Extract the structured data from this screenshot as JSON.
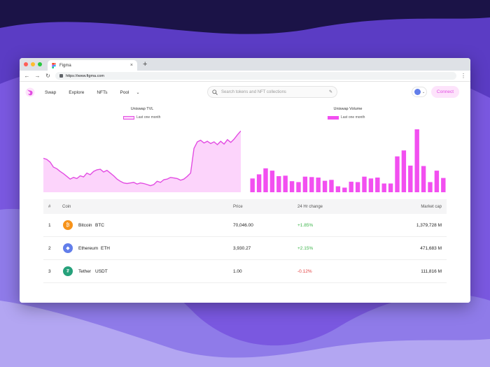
{
  "browser": {
    "tab_title": "Figma",
    "new_tab": "+",
    "close": "×",
    "url": "https://www.figma.com"
  },
  "nav": {
    "links": [
      "Swap",
      "Explore",
      "NFTs",
      "Pool"
    ],
    "search_placeholder": "Search tokens and NFT collections",
    "connect": "Connect"
  },
  "charts": {
    "tvl": {
      "title": "Uniswap TVL",
      "legend": "Last one month"
    },
    "volume": {
      "title": "Uniswap Volume",
      "legend": "Last one month"
    }
  },
  "chart_data": [
    {
      "type": "area",
      "title": "Uniswap TVL",
      "legend": [
        "Last one month"
      ],
      "values": [
        62,
        60,
        55,
        46,
        43,
        38,
        34,
        29,
        24,
        27,
        25,
        30,
        28,
        35,
        32,
        38,
        41,
        42,
        37,
        40,
        35,
        30,
        24,
        20,
        17,
        16,
        17,
        18,
        15,
        17,
        16,
        14,
        12,
        14,
        20,
        18,
        23,
        24,
        27,
        26,
        25,
        22,
        24,
        29,
        35,
        80,
        92,
        95,
        90,
        93,
        89,
        92,
        87,
        93,
        88,
        96,
        91,
        97,
        105,
        112
      ],
      "ylim": [
        0,
        120
      ]
    },
    {
      "type": "bar",
      "title": "Uniswap Volume",
      "legend": [
        "Last one month"
      ],
      "values": [
        30,
        39,
        52,
        47,
        35,
        36,
        24,
        22,
        34,
        33,
        32,
        25,
        27,
        13,
        10,
        23,
        22,
        34,
        30,
        32,
        19,
        19,
        78,
        91,
        58,
        137,
        57,
        22,
        47,
        31
      ],
      "ylim": [
        0,
        140
      ]
    }
  ],
  "table": {
    "headers": {
      "rank": "#",
      "coin": "Coin",
      "price": "Price",
      "change": "24 Hr change",
      "cap": "Market cap"
    },
    "rows": [
      {
        "rank": "1",
        "name": "Bitcoin",
        "symbol": "BTC",
        "price": "70,046.00",
        "change": "+1.85%",
        "cap": "1,379,728 M",
        "icon": "bitcoin-icon",
        "color": "#f7931a",
        "dir": "pos"
      },
      {
        "rank": "2",
        "name": "Ethereum",
        "symbol": "ETH",
        "price": "3,930.27",
        "change": "+2.15%",
        "cap": "471,683 M",
        "icon": "ethereum-icon",
        "color": "#627eea",
        "dir": "pos"
      },
      {
        "rank": "3",
        "name": "Tether",
        "symbol": "USDT",
        "price": "1.00",
        "change": "-0.12%",
        "cap": "111,816 M",
        "icon": "tether-icon",
        "color": "#26a17b",
        "dir": "neg"
      }
    ]
  },
  "colors": {
    "accent": "#e24ce2",
    "accent_fill": "#fcd4fb",
    "bar": "#f24ff0",
    "connect_bg": "#fde3fb",
    "positive": "#3cb54a",
    "negative": "#e23b3b"
  }
}
